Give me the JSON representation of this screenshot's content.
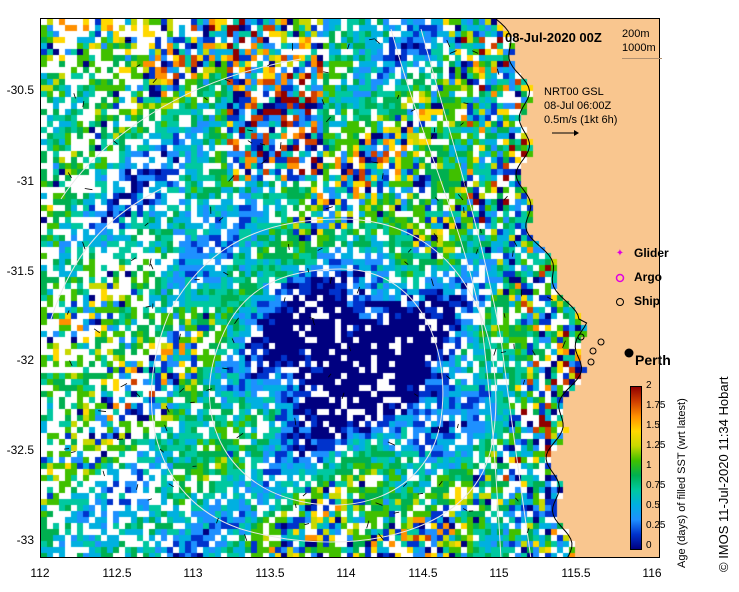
{
  "map": {
    "title": "08-Jul-2020 00Z",
    "depth_labels": [
      "200m",
      "1000m"
    ],
    "current_note": [
      "NRT00 GSL",
      "08-Jul 06:00Z",
      "0.5m/s (1kt 6h)"
    ],
    "x_ticks": [
      "112",
      "112.5",
      "113",
      "113.5",
      "114",
      "114.5",
      "115",
      "115.5",
      "116"
    ],
    "y_ticks": [
      "-30.5",
      "-31",
      "-31.5",
      "-32",
      "-32.5",
      "-33"
    ],
    "legend": {
      "glider": "Glider",
      "argo": "Argo",
      "ship": "Ship"
    },
    "city": "Perth",
    "colorbar": {
      "title": "Age (days) of filled SST (wrt latest)",
      "ticks": [
        "2",
        "1.75",
        "1.5",
        "1.25",
        "1",
        "0.75",
        "0.5",
        "0.25",
        "0"
      ],
      "colors": [
        "#000080",
        "#0033cc",
        "#1e90ff",
        "#00b0e0",
        "#00c8a0",
        "#00b050",
        "#40c000",
        "#c8d800",
        "#ffd800",
        "#ff9000",
        "#d04000",
        "#900000"
      ]
    },
    "credit": "© IMOS 11-Jul-2020 11:34 Hobart",
    "land_color": "#f9c68f",
    "lon_range": [
      112,
      116
    ],
    "lat_range": [
      -33.15,
      -30.1
    ]
  }
}
